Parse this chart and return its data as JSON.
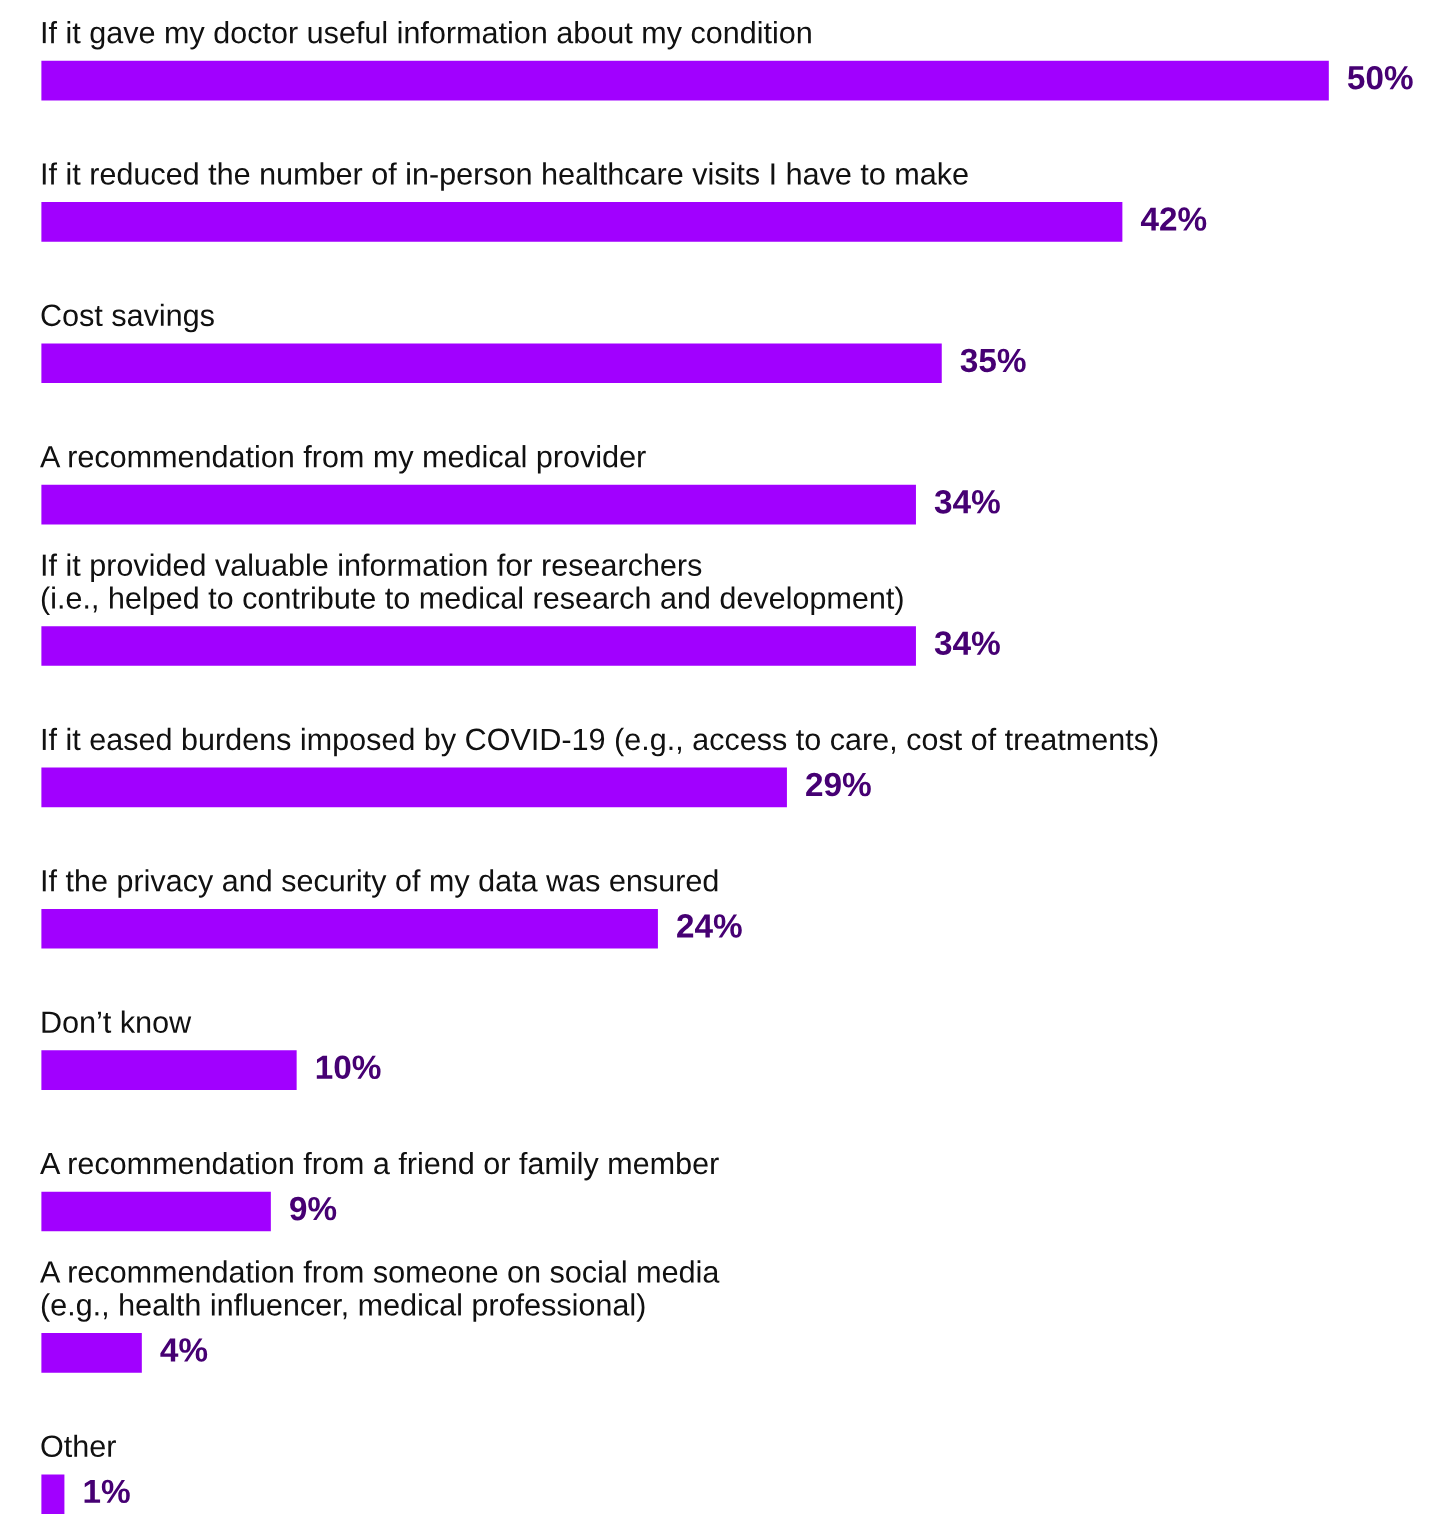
{
  "chart_data": {
    "type": "bar",
    "orientation": "horizontal",
    "categories": [
      "If it gave my doctor useful information about my condition",
      "If it reduced the number of in-person healthcare visits I have to make",
      "Cost savings",
      "A recommendation from my medical provider",
      "If it provided valuable information for researchers\n(i.e., helped to contribute to medical research and development)",
      "If it eased burdens imposed by COVID-19 (e.g., access to care, cost of treatments)",
      "If the privacy and security of my data was ensured",
      "Don’t know",
      "A recommendation from a friend or family member",
      "A recommendation from someone on social media\n(e.g., health influencer, medical professional)",
      "Other"
    ],
    "values": [
      50,
      42,
      35,
      34,
      34,
      29,
      24,
      10,
      9,
      4,
      1
    ],
    "value_labels": [
      "50%",
      "42%",
      "35%",
      "34%",
      "34%",
      "29%",
      "24%",
      "10%",
      "9%",
      "4%",
      "1%"
    ],
    "color": "#a100ff"
  }
}
